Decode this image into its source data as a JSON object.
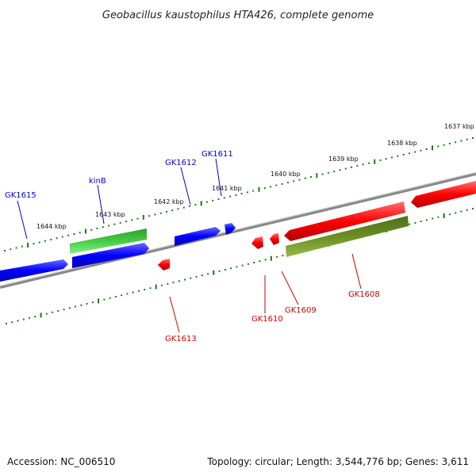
{
  "title": "Geobacillus kaustophilus HTA426, complete genome",
  "footer": {
    "accession": "Accession: NC_006510",
    "summary": "Topology: circular; Length: 3,544,776 bp; Genes: 3,611"
  },
  "colors": {
    "forward_cds": "#0000ff",
    "reverse_cds": "#ff0000",
    "forward_rna": "#33bb33",
    "reverse_rna": "#6b8e23",
    "backbone": "#888888",
    "scale_ticks": "#1a7a1a",
    "forward_label": "#0000cc",
    "reverse_label": "#cc0000"
  },
  "scale_labels": [
    {
      "text": "1637 kbp",
      "kb": 1637
    },
    {
      "text": "1638 kbp",
      "kb": 1638
    },
    {
      "text": "1639 kbp",
      "kb": 1639
    },
    {
      "text": "1640 kbp",
      "kb": 1640
    },
    {
      "text": "1641 kbp",
      "kb": 1641
    },
    {
      "text": "1642 kbp",
      "kb": 1642
    },
    {
      "text": "1643 kbp",
      "kb": 1643
    },
    {
      "text": "1644 kbp",
      "kb": 1644
    }
  ],
  "gene_labels": [
    {
      "name": "GK1615",
      "strand": "forward"
    },
    {
      "name": "kinB",
      "strand": "forward"
    },
    {
      "name": "GK1612",
      "strand": "forward"
    },
    {
      "name": "GK1611",
      "strand": "forward"
    },
    {
      "name": "GK1613",
      "strand": "reverse"
    },
    {
      "name": "GK1610",
      "strand": "reverse"
    },
    {
      "name": "GK1609",
      "strand": "reverse"
    },
    {
      "name": "GK1608",
      "strand": "reverse"
    }
  ]
}
